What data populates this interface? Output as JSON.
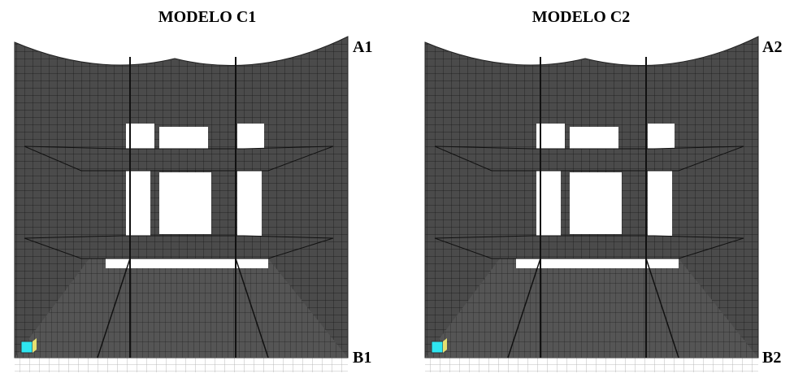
{
  "panels": [
    {
      "title": "MODELO C1",
      "top_label": "A1",
      "bottom_label": "B1"
    },
    {
      "title": "MODELO C2",
      "top_label": "A2",
      "bottom_label": "B2"
    }
  ]
}
